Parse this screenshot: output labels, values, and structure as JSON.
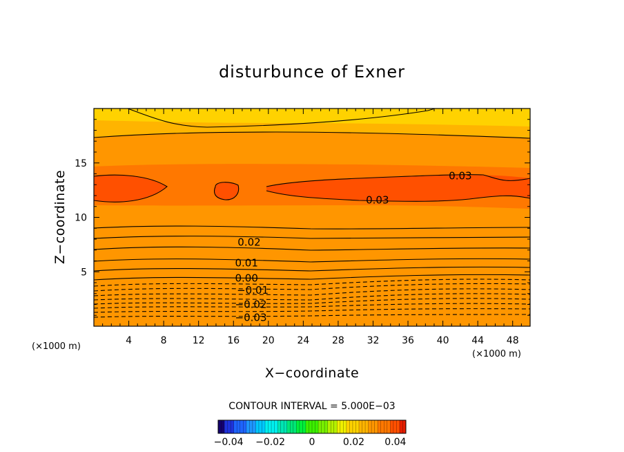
{
  "chart_data": {
    "type": "contour",
    "title": "disturbunce of Exner",
    "xlabel": "X−coordinate",
    "ylabel": "Z−coordinate",
    "x_unit": "(×1000 m)",
    "y_unit": "(×1000 m)",
    "xlim": [
      0,
      50
    ],
    "ylim": [
      0,
      20
    ],
    "x_ticks": [
      4,
      8,
      12,
      16,
      20,
      24,
      28,
      32,
      36,
      40,
      44,
      48
    ],
    "y_ticks": [
      5,
      10,
      15
    ],
    "contour_interval_text": "CONTOUR INTERVAL = 5.000E−03",
    "contour_labels": [
      {
        "text": "0.03",
        "x": 42,
        "z": 13.8
      },
      {
        "text": "0.03",
        "x": 32.5,
        "z": 11.6
      },
      {
        "text": "0.02",
        "x": 17.8,
        "z": 7.7
      },
      {
        "text": "0.01",
        "x": 17.5,
        "z": 5.8
      },
      {
        "text": "0.00",
        "x": 17.5,
        "z": 4.4
      },
      {
        "text": "−0.01",
        "x": 18.2,
        "z": 3.3
      },
      {
        "text": "−0.02",
        "x": 18.0,
        "z": 2.0
      },
      {
        "text": "−0.03",
        "x": 18.0,
        "z": 0.8
      }
    ],
    "colorbar": {
      "range": [
        -0.045,
        0.045
      ],
      "tick_values": [
        -0.04,
        -0.02,
        0,
        0.02,
        0.04
      ],
      "tick_labels": [
        "−0.04",
        "−0.02",
        "0",
        "0.02",
        "0.04"
      ]
    },
    "colors": {
      "c_m045": "#14006e",
      "c_m040": "#1e32dc",
      "c_m035": "#1e64ff",
      "c_m030": "#1e96ff",
      "c_m025": "#00c8ff",
      "c_m020": "#00f0f0",
      "c_m015": "#00e6b4",
      "c_m010": "#00e678",
      "c_m005": "#00f03c",
      "c_000": "#3cf000",
      "c_005": "#78f000",
      "c_010": "#b4f000",
      "c_015": "#f0f000",
      "c_020": "#ffd200",
      "c_025": "#ffb400",
      "c_030": "#ff9600",
      "c_035": "#ff7800",
      "c_040": "#ff5000",
      "c_045": "#e61e00"
    }
  }
}
